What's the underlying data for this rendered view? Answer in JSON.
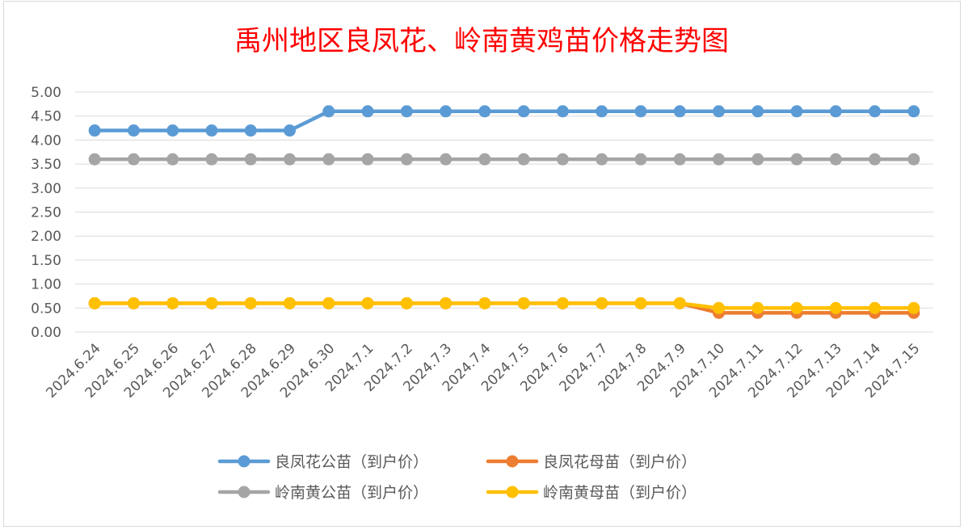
{
  "chart_data": {
    "type": "line",
    "title": "禹州地区良凤花、岭南黄鸡苗价格走势图",
    "xlabel": "",
    "ylabel": "",
    "ylim": [
      0,
      5
    ],
    "yticks": [
      "0.00",
      "0.50",
      "1.00",
      "1.50",
      "2.00",
      "2.50",
      "3.00",
      "3.50",
      "4.00",
      "4.50",
      "5.00"
    ],
    "grid": true,
    "legend_position": "bottom",
    "categories": [
      "2024.6.24",
      "2024.6.25",
      "2024.6.26",
      "2024.6.27",
      "2024.6.28",
      "2024.6.29",
      "2024.6.30",
      "2024.7.1",
      "2024.7.2",
      "2024.7.3",
      "2024.7.4",
      "2024.7.5",
      "2024.7.6",
      "2024.7.7",
      "2024.7.8",
      "2024.7.9",
      "2024.7.10",
      "2024.7.11",
      "2024.7.12",
      "2024.7.13",
      "2024.7.14",
      "2024.7.15"
    ],
    "series": [
      {
        "name": "良凤花公苗（到户价）",
        "color": "#5b9bd5",
        "values": [
          4.2,
          4.2,
          4.2,
          4.2,
          4.2,
          4.2,
          4.6,
          4.6,
          4.6,
          4.6,
          4.6,
          4.6,
          4.6,
          4.6,
          4.6,
          4.6,
          4.6,
          4.6,
          4.6,
          4.6,
          4.6,
          4.6
        ]
      },
      {
        "name": "良凤花母苗（到户价）",
        "color": "#ed7d31",
        "values": [
          0.6,
          0.6,
          0.6,
          0.6,
          0.6,
          0.6,
          0.6,
          0.6,
          0.6,
          0.6,
          0.6,
          0.6,
          0.6,
          0.6,
          0.6,
          0.6,
          0.4,
          0.4,
          0.4,
          0.4,
          0.4,
          0.4
        ]
      },
      {
        "name": "岭南黄公苗（到户价）",
        "color": "#a5a5a5",
        "values": [
          3.6,
          3.6,
          3.6,
          3.6,
          3.6,
          3.6,
          3.6,
          3.6,
          3.6,
          3.6,
          3.6,
          3.6,
          3.6,
          3.6,
          3.6,
          3.6,
          3.6,
          3.6,
          3.6,
          3.6,
          3.6,
          3.6
        ]
      },
      {
        "name": "岭南黄母苗（到户价）",
        "color": "#ffc000",
        "values": [
          0.6,
          0.6,
          0.6,
          0.6,
          0.6,
          0.6,
          0.6,
          0.6,
          0.6,
          0.6,
          0.6,
          0.6,
          0.6,
          0.6,
          0.6,
          0.6,
          0.5,
          0.5,
          0.5,
          0.5,
          0.5,
          0.5
        ]
      }
    ],
    "legend_order": [
      0,
      1,
      2,
      3
    ]
  }
}
